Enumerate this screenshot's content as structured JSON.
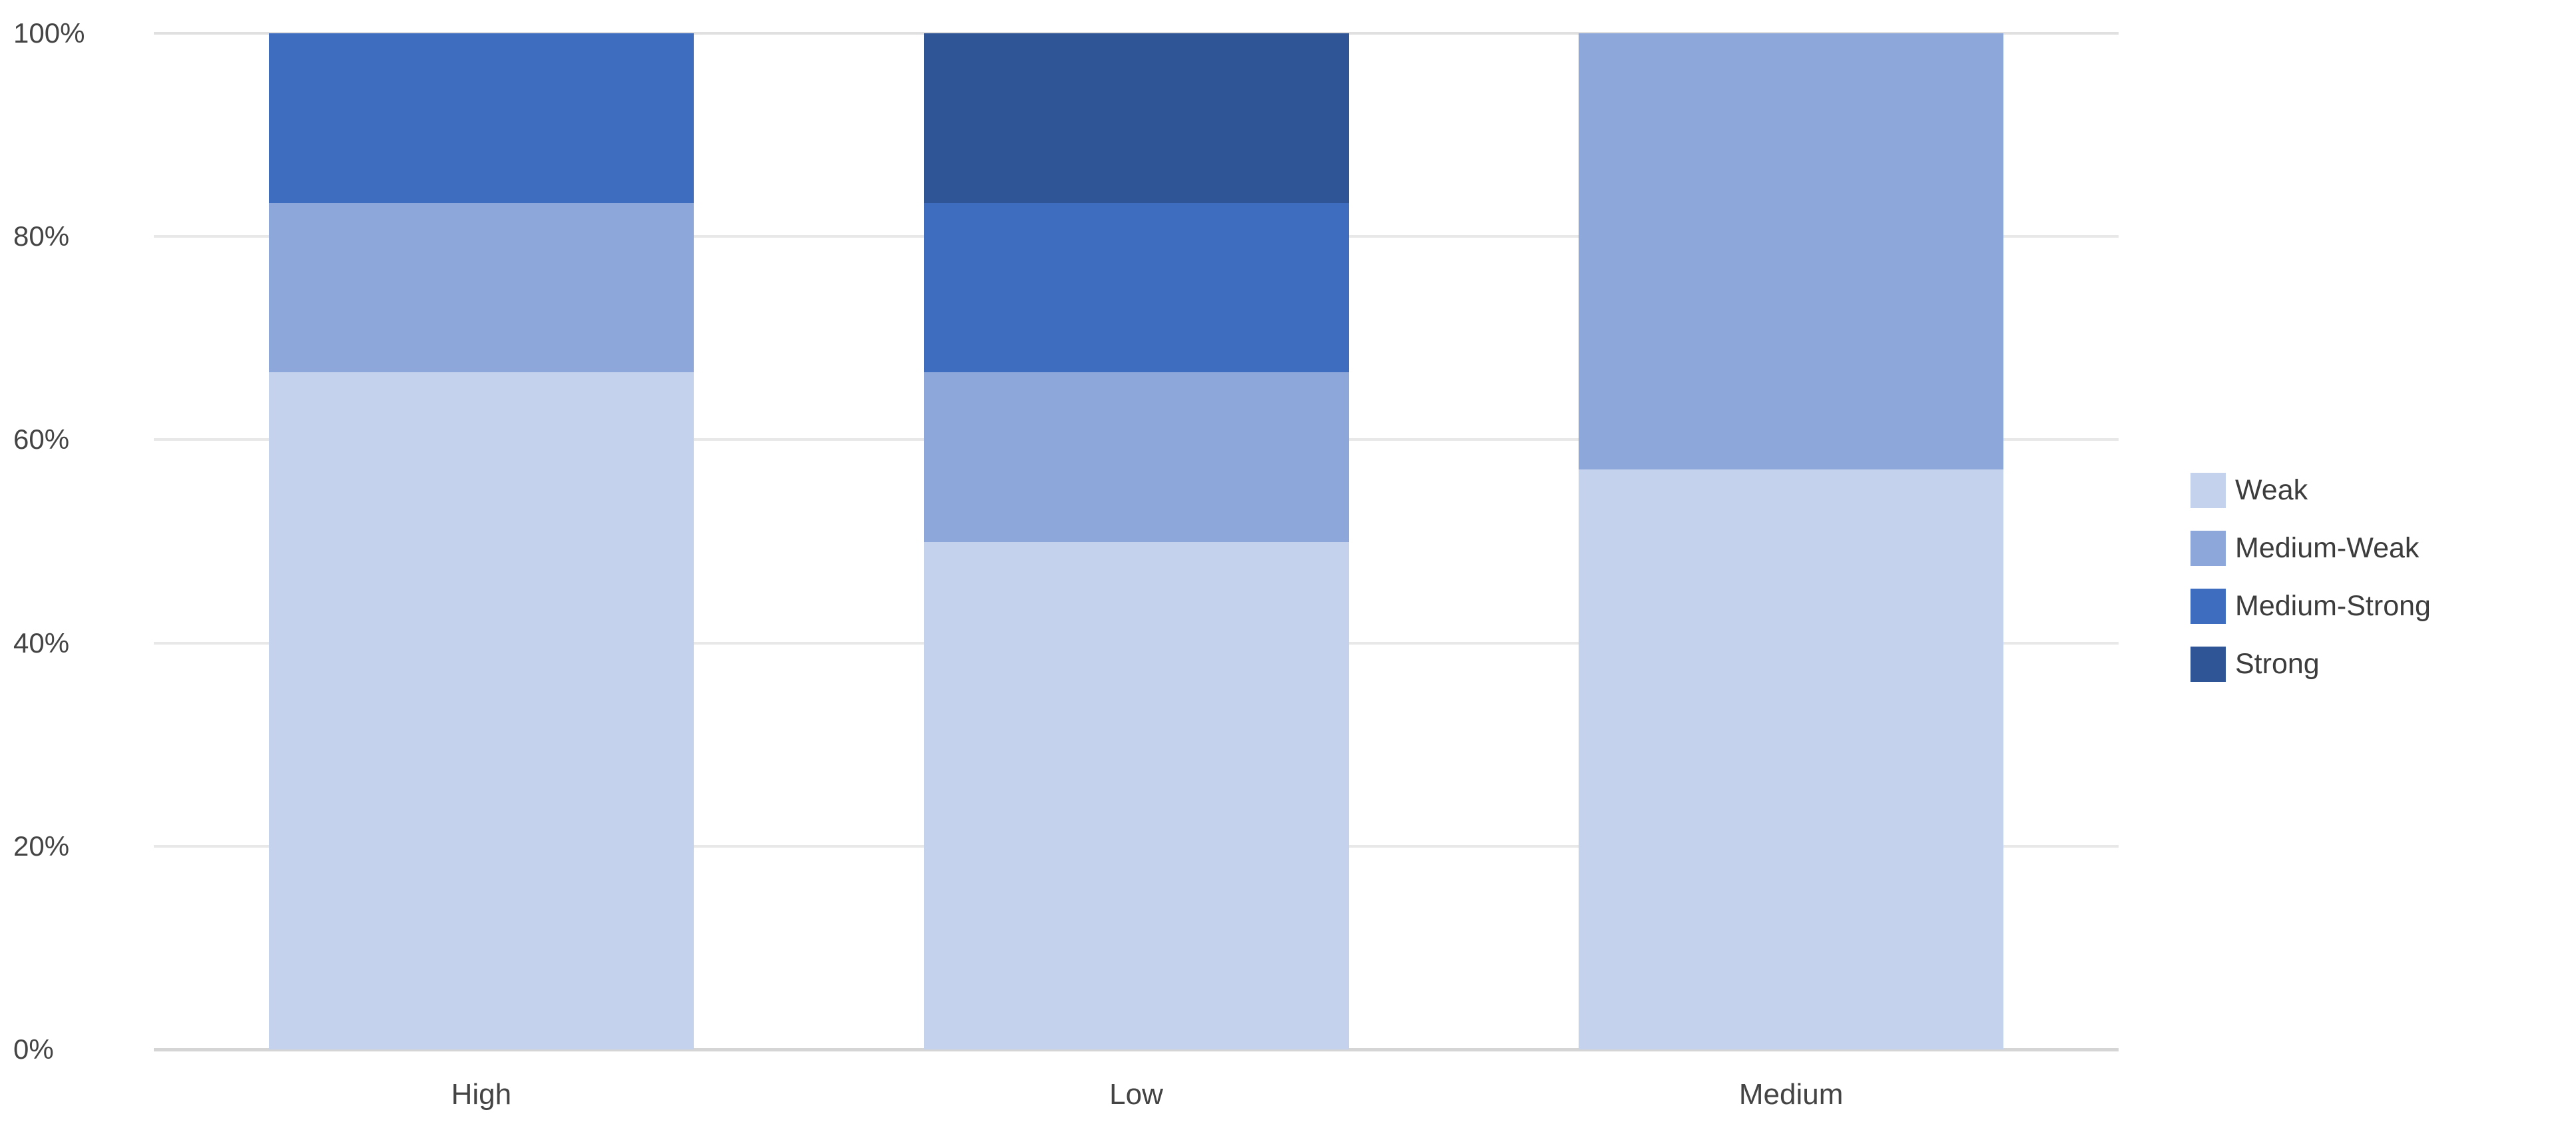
{
  "chart_data": {
    "type": "bar",
    "variant": "100-percent-stacked-vertical",
    "categories": [
      "High",
      "Low",
      "Medium"
    ],
    "series": [
      {
        "name": "Weak",
        "color": "#c4d2ee",
        "values": [
          66.7,
          50.0,
          57.1
        ]
      },
      {
        "name": "Medium-Weak",
        "color": "#8ea7db",
        "values": [
          16.7,
          16.7,
          42.9
        ]
      },
      {
        "name": "Medium-Strong",
        "color": "#3e6dbf",
        "values": [
          16.7,
          16.7,
          0
        ]
      },
      {
        "name": "Strong",
        "color": "#2f5596",
        "values": [
          0,
          16.7,
          0
        ]
      }
    ],
    "title": "",
    "xlabel": "",
    "ylabel": "",
    "ylim": [
      0,
      100
    ],
    "ytick_labels": [
      "0%",
      "20%",
      "40%",
      "60%",
      "80%",
      "100%"
    ],
    "grid": "horizontal",
    "gridline_color": "#e8e8e8",
    "axis_line_color": "#d5d5d5",
    "label_color": "#444444",
    "legend": {
      "position": "right",
      "entries": [
        "Weak",
        "Medium-Weak",
        "Medium-Strong",
        "Strong"
      ]
    }
  }
}
